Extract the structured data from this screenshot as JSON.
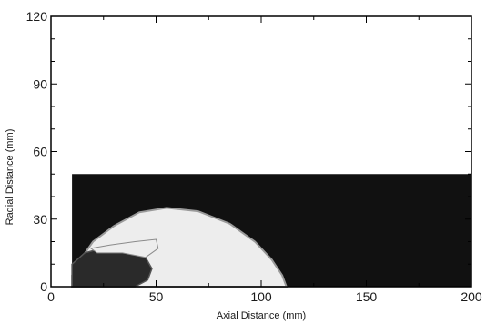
{
  "chart_data": {
    "type": "contour",
    "title": "",
    "xlabel": "Axial Distance (mm)",
    "ylabel": "Radial Distance (mm)",
    "xlim": [
      0,
      200
    ],
    "ylim": [
      0,
      120
    ],
    "x_ticks": [
      0,
      50,
      100,
      150,
      200
    ],
    "y_ticks": [
      0,
      30,
      60,
      90,
      120
    ],
    "x_tick_labels": [
      "0",
      "50",
      "100",
      "150",
      "200"
    ],
    "y_tick_labels": [
      "0",
      "30",
      "60",
      "90",
      "120"
    ],
    "grid": false,
    "legend": "none",
    "colors": {
      "background_fluid": "#111111",
      "bubble": "#ededed",
      "inner_core": "#2a2a2a",
      "axes": "#000000"
    },
    "regions": [
      {
        "name": "domain",
        "x_range": [
          10,
          200
        ],
        "y_range": [
          0,
          50
        ]
      },
      {
        "name": "bubble-boundary",
        "points": [
          [
            10,
            0
          ],
          [
            10,
            5
          ],
          [
            14,
            12
          ],
          [
            20,
            20
          ],
          [
            30,
            27
          ],
          [
            42,
            33
          ],
          [
            55,
            35
          ],
          [
            70,
            33.5
          ],
          [
            85,
            28
          ],
          [
            97,
            20
          ],
          [
            105,
            12
          ],
          [
            110,
            5
          ],
          [
            112,
            0
          ]
        ]
      },
      {
        "name": "inner-core",
        "points": [
          [
            10,
            0
          ],
          [
            10,
            10
          ],
          [
            16,
            15
          ],
          [
            28,
            18
          ],
          [
            38,
            17
          ],
          [
            45,
            13
          ],
          [
            48,
            8
          ],
          [
            46,
            3
          ],
          [
            40,
            0
          ]
        ]
      },
      {
        "name": "jet",
        "points": [
          [
            19,
            17
          ],
          [
            28,
            18.5
          ],
          [
            40,
            20
          ],
          [
            50,
            21
          ],
          [
            51,
            17
          ],
          [
            45,
            13
          ],
          [
            34,
            15
          ],
          [
            22,
            15
          ]
        ]
      }
    ]
  }
}
